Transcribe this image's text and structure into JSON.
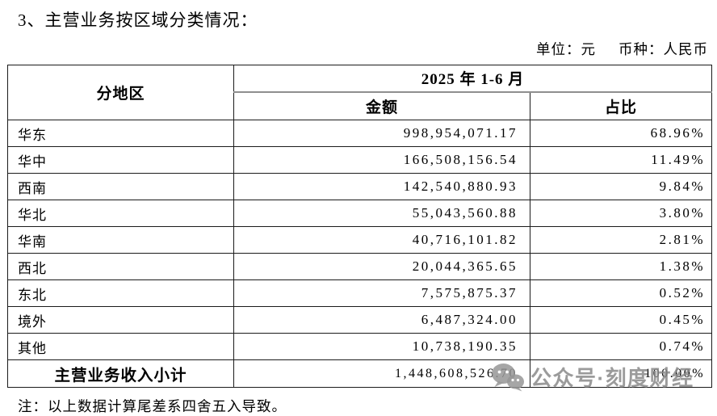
{
  "doc": {
    "title": "3、主营业务按区域分类情况：",
    "unit_label": "单位：元",
    "currency_label": "币种：人民币",
    "note": "注：以上数据计算尾差系四舍五入导致。"
  },
  "table": {
    "header": {
      "region": "分地区",
      "period": "2025 年 1-6 月",
      "amount": "金额",
      "percent": "占比"
    },
    "rows": [
      {
        "region": "华东",
        "amount": "998,954,071.17",
        "percent": "68.96%"
      },
      {
        "region": "华中",
        "amount": "166,508,156.54",
        "percent": "11.49%"
      },
      {
        "region": "西南",
        "amount": "142,540,880.93",
        "percent": "9.84%"
      },
      {
        "region": "华北",
        "amount": "55,043,560.88",
        "percent": "3.80%"
      },
      {
        "region": "华南",
        "amount": "40,716,101.82",
        "percent": "2.81%"
      },
      {
        "region": "西北",
        "amount": "20,044,365.65",
        "percent": "1.38%"
      },
      {
        "region": "东北",
        "amount": "7,575,875.37",
        "percent": "0.52%"
      },
      {
        "region": "境外",
        "amount": "6,487,324.00",
        "percent": "0.45%"
      },
      {
        "region": "其他",
        "amount": "10,738,190.35",
        "percent": "0.74%"
      }
    ],
    "total": {
      "region": "主营业务收入小计",
      "amount": "1,448,608,526.70",
      "percent": "100.00%"
    }
  },
  "watermark": {
    "icon": "wechat-icon",
    "text": "公众号·刻度财经",
    "color": "#8a8a8a"
  },
  "colors": {
    "text": "#000000",
    "border": "#1b1b1b",
    "header_divider": "#8f8f8f",
    "background": "#ffffff"
  }
}
